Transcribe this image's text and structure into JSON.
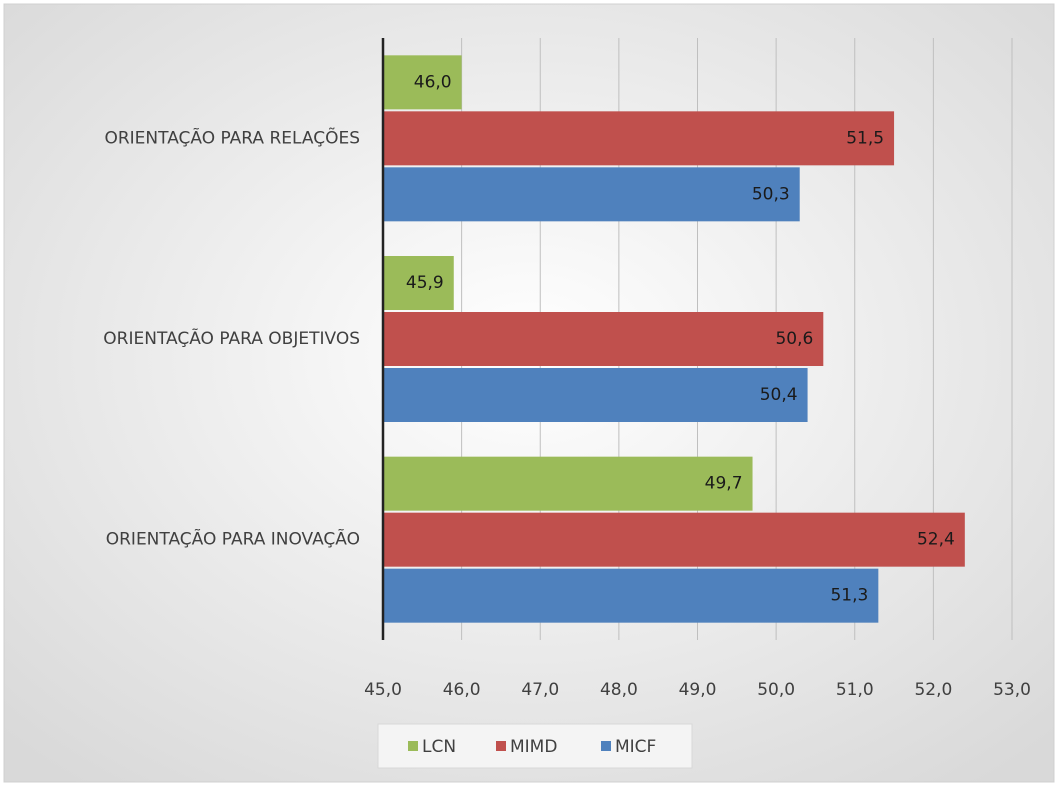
{
  "chart_data": {
    "type": "hbar",
    "categories": [
      "ORIENTAÇÃO PARA INOVAÇÃO",
      "ORIENTAÇÃO PARA OBJETIVOS",
      "ORIENTAÇÃO PARA RELAÇÕES"
    ],
    "series": [
      {
        "name": "LCN",
        "color": "#9bbb59",
        "values": [
          49.7,
          45.9,
          46.0
        ],
        "value_labels": [
          "49,7",
          "45,9",
          "46,0"
        ]
      },
      {
        "name": "MIMD",
        "color": "#c0504d",
        "values": [
          52.4,
          50.6,
          51.5
        ],
        "value_labels": [
          "52,4",
          "50,6",
          "51,5"
        ]
      },
      {
        "name": "MICF",
        "color": "#4f81bd",
        "values": [
          51.3,
          50.4,
          50.3
        ],
        "value_labels": [
          "51,3",
          "50,4",
          "50,3"
        ]
      }
    ],
    "xlim": [
      45,
      53
    ],
    "xticks": [
      {
        "value": 45,
        "label": "45,0"
      },
      {
        "value": 46,
        "label": "46,0"
      },
      {
        "value": 47,
        "label": "47,0"
      },
      {
        "value": 48,
        "label": "48,0"
      },
      {
        "value": 49,
        "label": "49,0"
      },
      {
        "value": 50,
        "label": "50,0"
      },
      {
        "value": 51,
        "label": "51,0"
      },
      {
        "value": 52,
        "label": "52,0"
      },
      {
        "value": 53,
        "label": "53,0"
      }
    ],
    "grid": true,
    "legend": "bottom"
  }
}
